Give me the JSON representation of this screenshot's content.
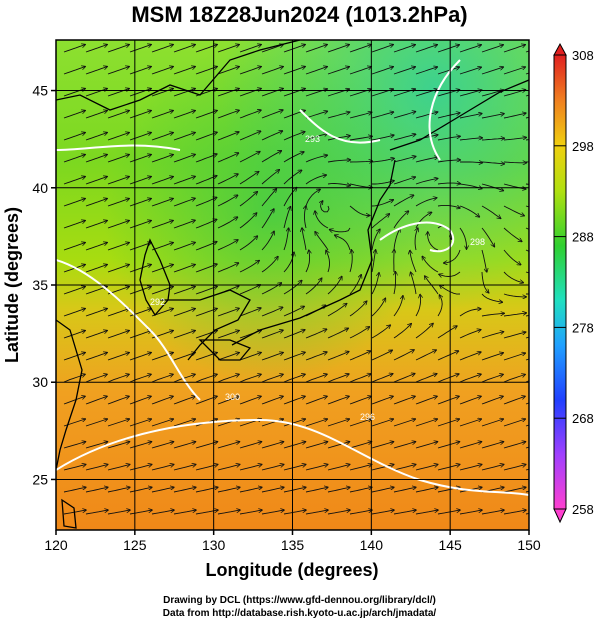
{
  "title": "MSM 18Z28Jun2024 (1013.2hPa)",
  "x_axis": {
    "label": "Longitude (degrees)",
    "min": 120,
    "max": 150,
    "ticks": [
      120,
      125,
      130,
      135,
      140,
      145,
      150
    ]
  },
  "y_axis": {
    "label": "Latitude  (degrees)",
    "min": 22.4,
    "max": 47.6,
    "ticks": [
      25,
      30,
      35,
      40,
      45
    ]
  },
  "colorbar": {
    "min": 258,
    "max": 308,
    "labels": [
      308,
      298,
      288,
      278,
      268,
      258
    ]
  },
  "credits": {
    "line1": "Drawing by DCL (https://www.gfd-dennou.org/library/dcl/)",
    "line2": "Data from http://database.rish.kyoto-u.ac.jp/arch/jmadata/"
  },
  "contour_labels": [
    "292",
    "293",
    "296",
    "298",
    "300"
  ],
  "colors": {
    "warm": "#f08a1a",
    "mid": "#9ddc10",
    "cool": "#2fd050",
    "streamline": "#111111",
    "contour": "#ffffff"
  }
}
